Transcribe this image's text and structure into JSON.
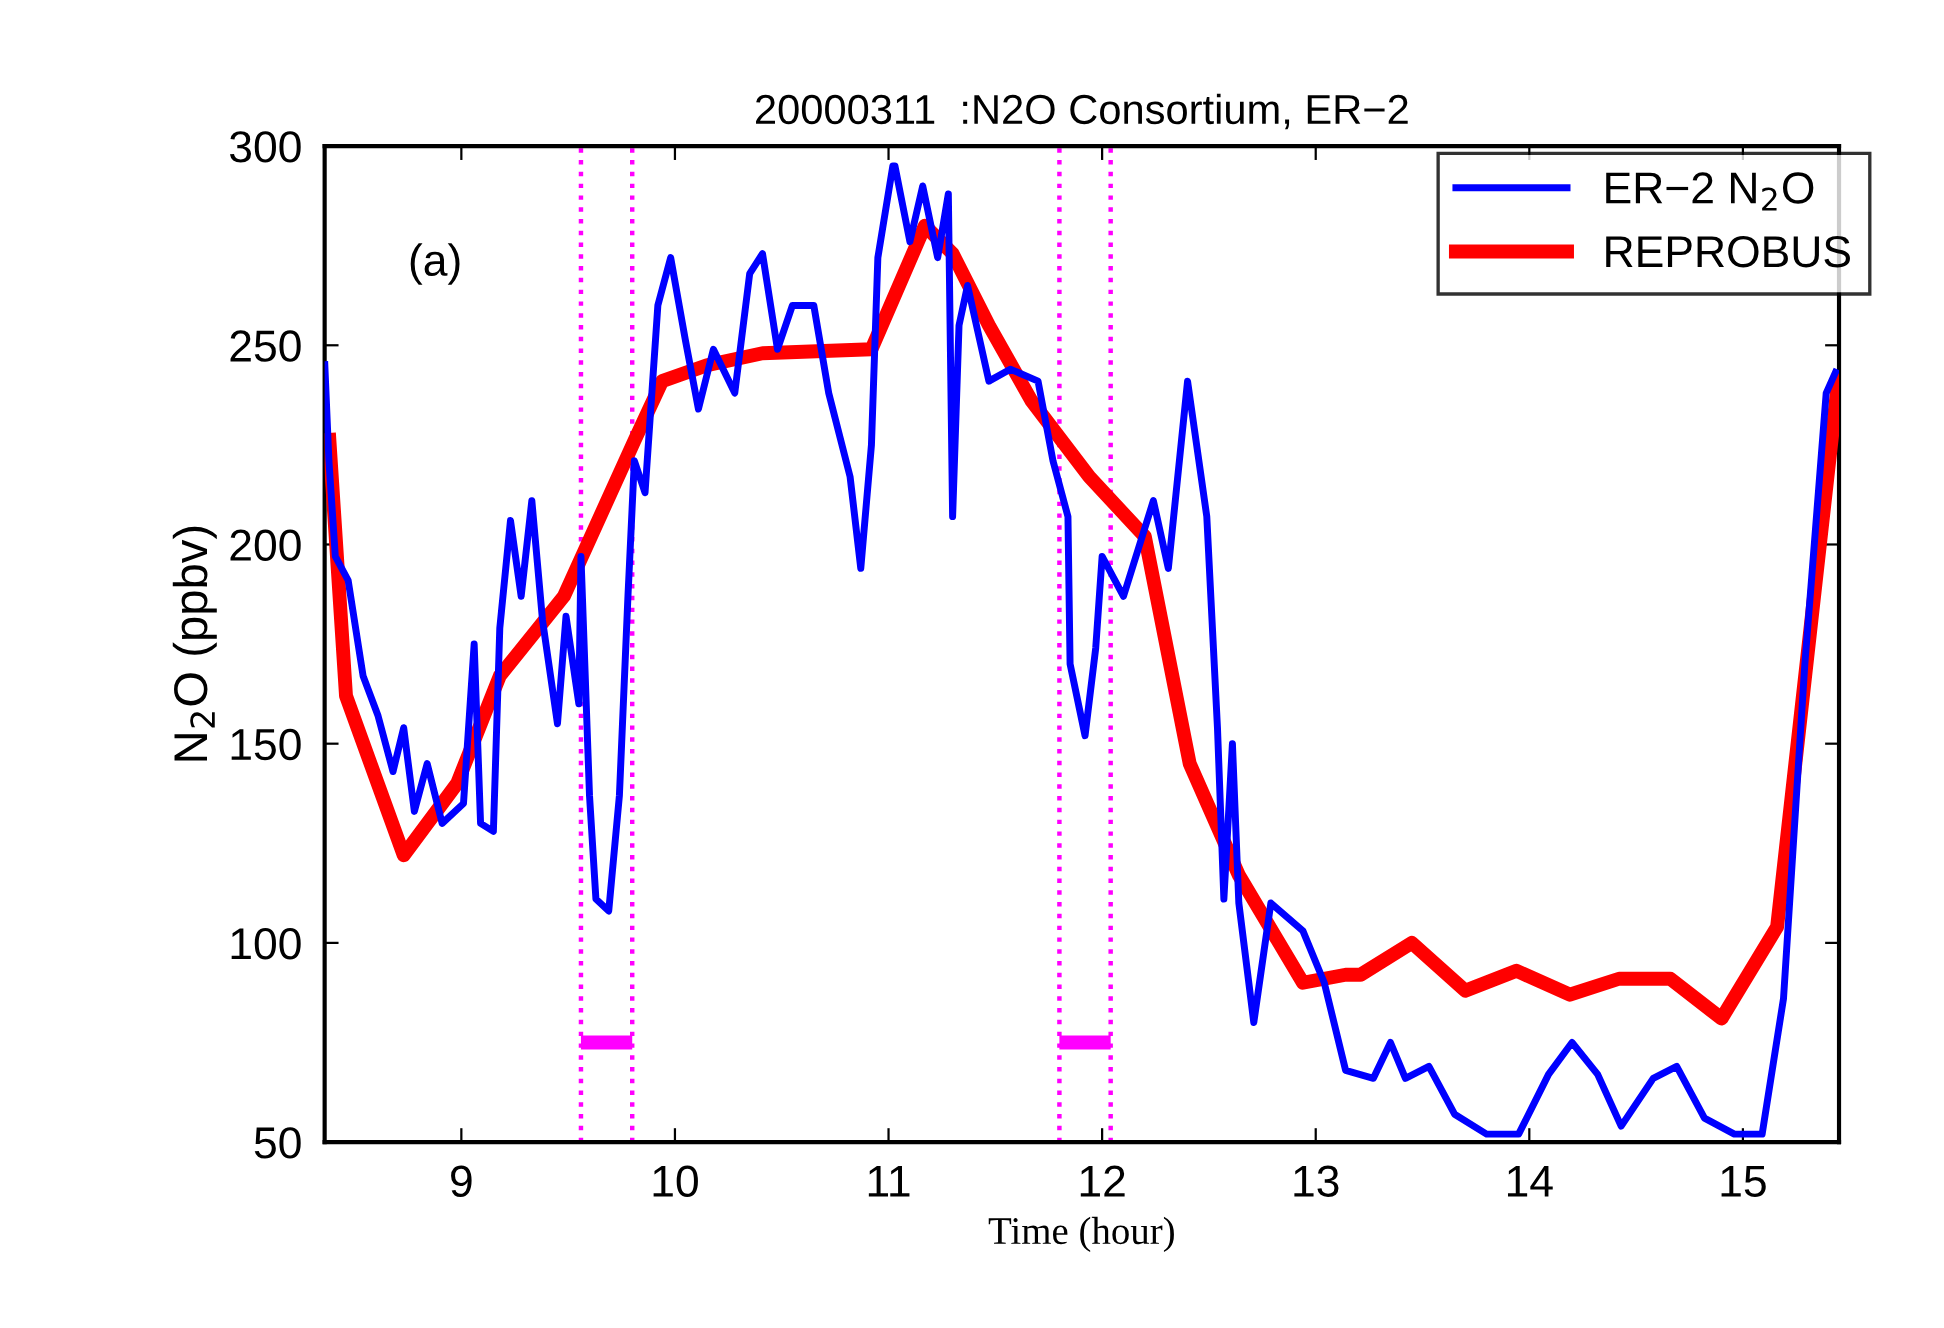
{
  "chart_data": {
    "type": "line",
    "title": "20000311  :N2O Consortium, ER−2",
    "xlabel": "Time (hour)",
    "ylabel": "N$_{2}$O (ppbv)",
    "annotations": [
      "(a)"
    ],
    "xlim": [
      8.36,
      15.45
    ],
    "xticks": [
      9,
      10,
      11,
      12,
      13,
      14,
      15
    ],
    "ylim": [
      50,
      300
    ],
    "yticks": [
      50,
      100,
      150,
      200,
      250,
      300
    ],
    "grid": false,
    "legend": "top right",
    "ref_lines": [
      {
        "axis": "x",
        "value": 9.56,
        "color": "#ff00ff",
        "line_style": "dotted"
      },
      {
        "axis": "x",
        "value": 9.8,
        "color": "#ff00ff",
        "line_style": "dotted"
      },
      {
        "axis": "x",
        "value": 11.8,
        "color": "#ff00ff",
        "line_style": "dotted"
      },
      {
        "axis": "x",
        "value": 12.04,
        "color": "#ff00ff",
        "line_style": "dotted"
      }
    ],
    "series": [
      {
        "name": "ER−2 N$_{2}$O",
        "color": "#0000ff",
        "x": [
          8.36,
          8.38,
          8.41,
          8.47,
          8.54,
          8.61,
          8.68,
          8.73,
          8.78,
          8.84,
          8.91,
          9.01,
          9.06,
          9.09,
          9.15,
          9.18,
          9.23,
          9.28,
          9.33,
          9.38,
          9.45,
          9.49,
          9.55,
          9.56,
          9.6,
          9.63,
          9.69,
          9.74,
          9.78,
          9.81,
          9.86,
          9.92,
          9.98,
          10.05,
          10.11,
          10.18,
          10.28,
          10.35,
          10.41,
          10.48,
          10.55,
          10.65,
          10.72,
          10.82,
          10.87,
          10.92,
          10.95,
          11.02,
          11.03,
          11.1,
          11.16,
          11.23,
          11.28,
          11.3,
          11.33,
          11.37,
          11.47,
          11.57,
          11.7,
          11.77,
          11.84,
          11.85,
          11.92,
          11.97,
          12.0,
          12.1,
          12.24,
          12.31,
          12.4,
          12.49,
          12.54,
          12.57,
          12.61,
          12.64,
          12.71,
          12.79,
          12.94,
          13.04,
          13.14,
          13.27,
          13.35,
          13.42,
          13.53,
          13.65,
          13.8,
          13.95,
          14.09,
          14.2,
          14.32,
          14.43,
          14.58,
          14.69,
          14.82,
          14.96,
          15.09,
          15.19,
          15.29,
          15.39,
          15.44
        ],
        "values": [
          246,
          221,
          197,
          191,
          167,
          157,
          143,
          154,
          133,
          145,
          130,
          135,
          175,
          130,
          128,
          179,
          206,
          187,
          211,
          181,
          155,
          182,
          160,
          197,
          137,
          111,
          108,
          137,
          187,
          221,
          213,
          260,
          272,
          251,
          234,
          249,
          238,
          268,
          273,
          249,
          260,
          260,
          238,
          217,
          194,
          225,
          272,
          295,
          295,
          276,
          290,
          272,
          288,
          207,
          255,
          265,
          241,
          244,
          241,
          221,
          207,
          170,
          152,
          174,
          197,
          187,
          211,
          194,
          241,
          207,
          154,
          111,
          150,
          110,
          80,
          110,
          103,
          90,
          68,
          66,
          75,
          66,
          69,
          57,
          52,
          52,
          67,
          75,
          67,
          54,
          66,
          69,
          56,
          52,
          52,
          86,
          170,
          238,
          244
        ]
      },
      {
        "name": "REPROBUS",
        "color": "#ff0000",
        "x": [
          8.38,
          8.46,
          8.73,
          8.98,
          9.18,
          9.48,
          9.81,
          9.94,
          10.15,
          10.41,
          10.92,
          11.17,
          11.3,
          11.47,
          11.67,
          11.94,
          12.2,
          12.41,
          12.64,
          12.94,
          13.14,
          13.21,
          13.45,
          13.7,
          13.94,
          14.19,
          14.42,
          14.66,
          14.9,
          15.16,
          15.45
        ],
        "values": [
          228,
          162,
          122,
          140,
          167,
          187,
          226,
          241,
          245,
          248,
          249,
          280,
          273,
          255,
          236,
          217,
          202,
          145,
          117,
          90,
          92,
          92,
          100,
          88,
          93,
          87,
          91,
          91,
          81,
          104,
          243
        ]
      },
      {
        "type": "line",
        "color": "#ff00ff",
        "x": [
          9.56,
          9.8,
          10.9,
          11.8,
          12.04
        ],
        "values": [
          75,
          75,
          null,
          75,
          75
        ]
      }
    ]
  }
}
